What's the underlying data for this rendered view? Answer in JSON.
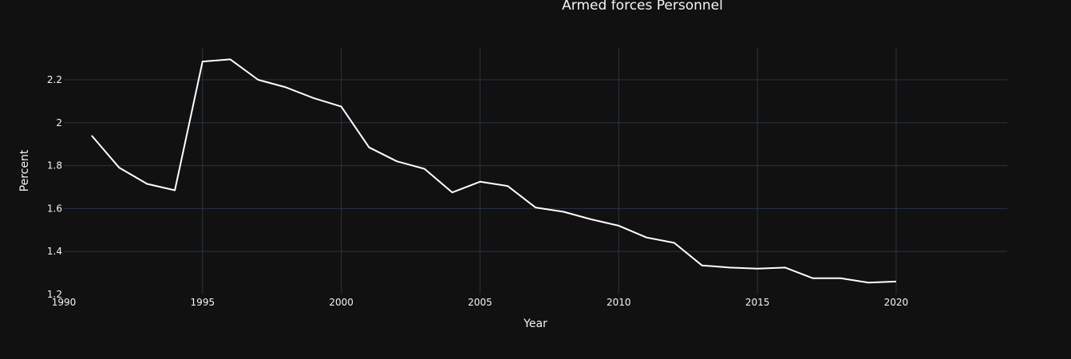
{
  "chart_data": {
    "type": "line",
    "title": "Armed forces Personnel",
    "xlabel": "Year",
    "ylabel": "Percent",
    "xlim": [
      1990,
      2024
    ],
    "ylim": [
      1.2,
      2.35
    ],
    "x_ticks": [
      1990,
      1995,
      2000,
      2005,
      2010,
      2015,
      2020
    ],
    "y_ticks": [
      1.2,
      1.4,
      1.6,
      1.8,
      2.0,
      2.2
    ],
    "y_tick_labels": [
      "1.2",
      "1.4",
      "1.6",
      "1.8",
      "2",
      "2.2"
    ],
    "grid": true,
    "colors": {
      "background": "#111111",
      "grid": "#283442",
      "text": "#f2f5fa",
      "line": "#ffffff"
    },
    "x": [
      1991,
      1992,
      1993,
      1994,
      1995,
      1996,
      1997,
      1998,
      1999,
      2000,
      2001,
      2002,
      2003,
      2004,
      2005,
      2006,
      2007,
      2008,
      2009,
      2010,
      2011,
      2012,
      2013,
      2014,
      2015,
      2016,
      2017,
      2018,
      2019,
      2020
    ],
    "series": [
      {
        "values": [
          1.94,
          1.79,
          1.715,
          1.685,
          2.285,
          2.295,
          2.2,
          2.165,
          2.115,
          2.075,
          1.885,
          1.82,
          1.785,
          1.675,
          1.725,
          1.705,
          1.605,
          1.585,
          1.55,
          1.52,
          1.465,
          1.44,
          1.335,
          1.325,
          1.32,
          1.325,
          1.275,
          1.275,
          1.255,
          1.26
        ]
      }
    ]
  }
}
